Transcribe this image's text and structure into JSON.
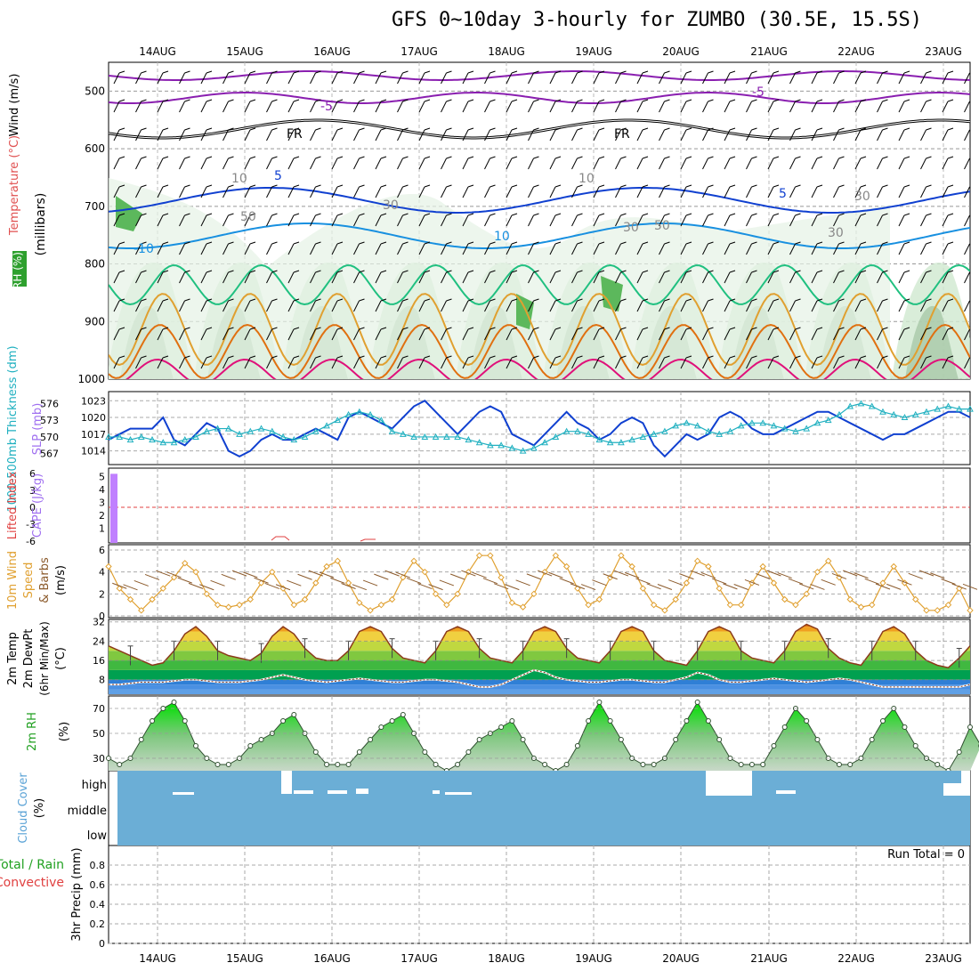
{
  "page_title": "GFS 0~10day 3-hourly for ZUMBO (30.5E, 15.5S)",
  "colors": {
    "temp_band_bg": [
      "#5fa0e6",
      "#4a90e2",
      "#2f7fd6",
      "#00a050",
      "#40b840",
      "#80c840",
      "#c0d840",
      "#f0d040",
      "#f0a020",
      "#e07010",
      "#c05010"
    ],
    "cloud_fill": "#6baed6",
    "rh_green": "#00d000",
    "cape_bar": "#c080ff",
    "slp_line": "#1040d0",
    "thickness_line": "#20b0c0",
    "wind_speed_line": "#e0a030"
  },
  "chart_data": [
    {
      "panel": "upper-air",
      "type": "heatmap",
      "ylabel_parts": [
        "Wind (m/s)",
        "Temperature (°C)",
        "RH (%)",
        "(millibars)"
      ],
      "y_ticks": [
        500,
        600,
        700,
        800,
        900,
        1000
      ],
      "ylim": [
        450,
        1000
      ],
      "x_ticks": [
        "14AUG",
        "15AUG",
        "16AUG",
        "17AUG",
        "18AUG",
        "19AUG",
        "20AUG",
        "21AUG",
        "22AUG",
        "23AUG"
      ],
      "contour_labels": [
        "-5",
        "-5",
        "FR",
        "FR",
        "5",
        "5",
        "10",
        "-10",
        "10",
        "30",
        "50",
        "30",
        "50",
        "30",
        "10",
        "30"
      ]
    },
    {
      "panel": "slp-thickness",
      "type": "line",
      "ylabel_left": "1000-500mb Thickness (dm)",
      "ylabel_right": "SLP (mb)",
      "left_ticks": [
        567,
        570,
        573,
        576
      ],
      "right_ticks": [
        1014,
        1017,
        1020,
        1023
      ],
      "series": [
        {
          "name": "SLP (mb)",
          "values": [
            1016,
            1017,
            1018,
            1018,
            1018,
            1020,
            1016,
            1015,
            1017,
            1019,
            1018,
            1014,
            1013,
            1014,
            1016,
            1017,
            1016,
            1016,
            1017,
            1018,
            1017,
            1016,
            1020,
            1021,
            1020,
            1019,
            1018,
            1020,
            1022,
            1023,
            1021,
            1019,
            1017,
            1019,
            1021,
            1022,
            1021,
            1017,
            1016,
            1015,
            1017,
            1019,
            1021,
            1019,
            1018,
            1016,
            1017,
            1019,
            1020,
            1019,
            1015,
            1013,
            1015,
            1017,
            1016,
            1017,
            1020,
            1021,
            1020,
            1018,
            1017,
            1017,
            1018,
            1019,
            1020,
            1021,
            1021,
            1020,
            1019,
            1018,
            1017,
            1016,
            1017,
            1017,
            1018,
            1019,
            1020,
            1021,
            1021,
            1020
          ]
        },
        {
          "name": "1000-500mb Thickness (dm)",
          "values": [
            570,
            570,
            569.5,
            570,
            569.5,
            569,
            569,
            569.5,
            570,
            571,
            571.5,
            571.5,
            570.5,
            571,
            571.5,
            571,
            570,
            569.5,
            570,
            571,
            572,
            573,
            574,
            574.5,
            574,
            573,
            571,
            570.5,
            570,
            570,
            570,
            570,
            570,
            569.5,
            569,
            568.5,
            568.5,
            568,
            567.5,
            568,
            569,
            570,
            571,
            571,
            570.5,
            569.5,
            569,
            569,
            569.5,
            570,
            570.5,
            571,
            572,
            572.5,
            572,
            571,
            570.5,
            571,
            572,
            572.5,
            572.5,
            572,
            571.5,
            571,
            571.5,
            572.5,
            573,
            574,
            575.5,
            576,
            575.5,
            574.5,
            574,
            573.5,
            574,
            574.5,
            575,
            575.5,
            575,
            575
          ]
        }
      ]
    },
    {
      "panel": "cape-li",
      "type": "bar",
      "ylabel_parts": [
        "Lifted Index",
        "CAPE (J/kg)"
      ],
      "left_ticks": [
        "6",
        "3",
        "0",
        "-3",
        "-6"
      ],
      "right_ticks": [
        1,
        2,
        3,
        4,
        5
      ],
      "cape_values": [
        5.2,
        0,
        0
      ]
    },
    {
      "panel": "10m-wind",
      "type": "line",
      "ylabel_parts": [
        "10m Wind",
        "Speed",
        "& Barbs",
        "(m/s)"
      ],
      "ylim": [
        0,
        6
      ],
      "y_ticks": [
        0,
        2,
        4,
        6
      ],
      "series": [
        {
          "name": "Speed",
          "values": [
            4.5,
            2.5,
            1.5,
            0.5,
            1.5,
            2.5,
            3.5,
            4.8,
            4,
            2,
            1,
            0.8,
            1,
            1.5,
            3,
            4,
            2.5,
            1,
            1.5,
            3,
            4.5,
            5,
            3,
            1.2,
            0.5,
            1,
            1.5,
            3.5,
            5,
            4,
            2,
            1,
            2,
            4,
            5.5,
            5.5,
            3.5,
            1.2,
            0.8,
            2,
            4,
            5.5,
            4.5,
            2.5,
            1,
            1.5,
            3.5,
            5.5,
            4.5,
            2.5,
            1,
            0.5,
            1.5,
            3,
            5,
            4.5,
            2.5,
            1,
            1,
            3,
            4.5,
            3,
            1.5,
            1,
            2,
            4,
            5,
            3.5,
            1.5,
            0.8,
            1,
            3,
            4.5,
            3,
            1.5,
            0.5,
            0.5,
            1,
            2.5,
            0.5
          ]
        }
      ]
    },
    {
      "panel": "2m-temp",
      "type": "area",
      "ylabel_parts": [
        "2m Temp",
        "2m DewPt",
        "(6hr Min/Max)",
        "(°C)"
      ],
      "ylim": [
        2,
        33
      ],
      "y_ticks": [
        8,
        16,
        24,
        32
      ],
      "series": [
        {
          "name": "2m Temp",
          "values": [
            22,
            20,
            18,
            16,
            14,
            15,
            20,
            27,
            30,
            26,
            20,
            18,
            17,
            16,
            19,
            26,
            30,
            27,
            21,
            17,
            16,
            16,
            20,
            28,
            30,
            28,
            21,
            17,
            16,
            15,
            20,
            28,
            30,
            28,
            21,
            17,
            16,
            15,
            20,
            28,
            30,
            28,
            21,
            17,
            16,
            15,
            20,
            28,
            30,
            28,
            20,
            16,
            15,
            14,
            20,
            28,
            30,
            28,
            20,
            17,
            16,
            15,
            20,
            28,
            31,
            29,
            21,
            17,
            15,
            14,
            20,
            28,
            30,
            27,
            20,
            16,
            14,
            13,
            17,
            22
          ]
        },
        {
          "name": "2m DewPt",
          "values": [
            6,
            6,
            6.5,
            7,
            7,
            7,
            7.5,
            8,
            8,
            7.5,
            7,
            7,
            7,
            7.5,
            8,
            9,
            10,
            9,
            8,
            7.5,
            7,
            7.5,
            8,
            8.5,
            8,
            7.5,
            7,
            7,
            7.5,
            8,
            8,
            7.5,
            7,
            6,
            5,
            5,
            6,
            8,
            10,
            12,
            11,
            9,
            8,
            7.5,
            7,
            7,
            7.5,
            8,
            8,
            7.5,
            7,
            7,
            8,
            9,
            11,
            10,
            8,
            7,
            7,
            7.5,
            8,
            8.5,
            8,
            7.5,
            7,
            7.5,
            8,
            8.5,
            8,
            7,
            6,
            5,
            5,
            5,
            5,
            5,
            5,
            5,
            5,
            6
          ]
        }
      ]
    },
    {
      "panel": "2m-rh",
      "type": "area",
      "ylabel_parts": [
        "2m RH",
        "(%)"
      ],
      "ylim": [
        20,
        80
      ],
      "y_ticks": [
        30,
        50,
        70
      ],
      "series": [
        {
          "name": "2m RH",
          "values": [
            30,
            25,
            30,
            45,
            60,
            70,
            75,
            60,
            40,
            30,
            25,
            25,
            30,
            40,
            45,
            50,
            60,
            65,
            50,
            35,
            25,
            25,
            25,
            35,
            45,
            55,
            60,
            65,
            50,
            35,
            25,
            20,
            25,
            35,
            45,
            50,
            55,
            60,
            45,
            30,
            25,
            20,
            25,
            40,
            60,
            75,
            60,
            45,
            30,
            25,
            25,
            30,
            45,
            60,
            75,
            60,
            45,
            30,
            25,
            25,
            25,
            40,
            55,
            70,
            60,
            45,
            30,
            25,
            25,
            30,
            45,
            60,
            70,
            55,
            40,
            30,
            25,
            20,
            35,
            55,
            40
          ]
        }
      ]
    },
    {
      "panel": "cloud-cover",
      "type": "heatmap",
      "ylabel_parts": [
        "Cloud Cover",
        "(%)"
      ],
      "level_labels": [
        "high",
        "middle",
        "low"
      ],
      "note": "near-full high/middle/low cloud cover with small gaps"
    },
    {
      "panel": "precip",
      "type": "bar",
      "ylabel_parts": [
        "3hr Precip (mm)",
        "Total / Rain",
        "Convective"
      ],
      "ylim": [
        0,
        1
      ],
      "y_ticks": [
        0,
        0.2,
        0.4,
        0.6,
        0.8
      ],
      "run_total_text": "Run Total = 0",
      "x_ticks": [
        "14AUG",
        "15AUG",
        "16AUG",
        "17AUG",
        "18AUG",
        "19AUG",
        "20AUG",
        "21AUG",
        "22AUG",
        "23AUG"
      ]
    }
  ]
}
